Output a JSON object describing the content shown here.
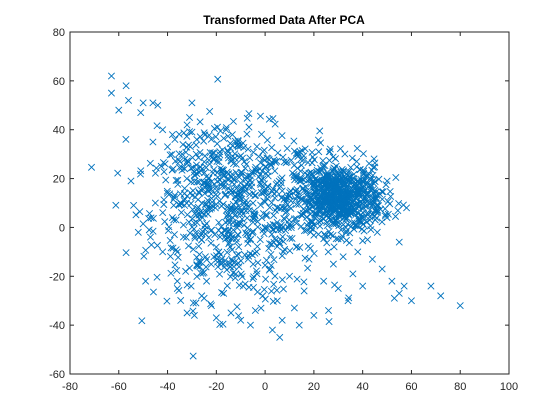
{
  "chart_data": {
    "type": "scatter",
    "title": "Transformed Data After PCA",
    "xlabel": "",
    "ylabel": "",
    "xlim": [
      -80,
      100
    ],
    "ylim": [
      -60,
      80
    ],
    "xticks": [
      -80,
      -60,
      -40,
      -20,
      0,
      20,
      40,
      60,
      80,
      100
    ],
    "yticks": [
      -60,
      -40,
      -20,
      0,
      20,
      40,
      60,
      80
    ],
    "grid": false,
    "marker": "x",
    "color": "#0072BD",
    "series": [
      {
        "points": [
          [
            -63,
            62
          ],
          [
            -63,
            55
          ],
          [
            -60,
            48
          ],
          [
            -57,
            58
          ],
          [
            -56,
            52
          ],
          [
            -55,
            19
          ],
          [
            -51,
            47
          ],
          [
            -50,
            51
          ],
          [
            -49,
            -22
          ],
          [
            -46,
            51
          ],
          [
            -44,
            50
          ],
          [
            -42,
            40
          ],
          [
            -41,
            26
          ],
          [
            -40,
            33
          ],
          [
            -38,
            38
          ],
          [
            -37,
            36
          ],
          [
            -36,
            -25
          ],
          [
            -36,
            -22
          ],
          [
            -35,
            27
          ],
          [
            -34,
            30
          ],
          [
            -33,
            24
          ],
          [
            -33,
            16
          ],
          [
            -33,
            9
          ],
          [
            -32,
            -35
          ],
          [
            -31,
            45
          ],
          [
            -30,
            39
          ],
          [
            -30,
            51
          ],
          [
            -29,
            -36
          ],
          [
            -28,
            36
          ],
          [
            -28,
            22
          ],
          [
            -27,
            -4
          ],
          [
            -27,
            14
          ],
          [
            -26,
            -28
          ],
          [
            -25,
            -29
          ],
          [
            -24,
            -22
          ],
          [
            -23,
            8
          ],
          [
            -22,
            -32
          ],
          [
            -21,
            -12
          ],
          [
            -20,
            -37
          ],
          [
            -20,
            -8
          ],
          [
            -19,
            2
          ],
          [
            -18,
            -15
          ],
          [
            -17,
            -27
          ],
          [
            -16,
            40
          ],
          [
            -15,
            22
          ],
          [
            -14,
            -35
          ],
          [
            -13,
            -1
          ],
          [
            -12,
            -19
          ],
          [
            -11,
            33
          ],
          [
            -10,
            -38
          ],
          [
            -9,
            -24
          ],
          [
            -8,
            15
          ],
          [
            -7,
            -13
          ],
          [
            -6,
            -40
          ],
          [
            -5,
            -21
          ],
          [
            -4,
            -34
          ],
          [
            -3,
            23
          ],
          [
            -2,
            -5
          ],
          [
            -1,
            -28
          ],
          [
            0,
            0
          ],
          [
            2,
            -17
          ],
          [
            3,
            -42
          ],
          [
            4,
            27
          ],
          [
            5,
            -30
          ],
          [
            6,
            -45
          ],
          [
            7,
            -38
          ],
          [
            8,
            -9
          ],
          [
            10,
            -20
          ],
          [
            12,
            -33
          ],
          [
            14,
            -40
          ],
          [
            15,
            5
          ],
          [
            16,
            -26
          ],
          [
            18,
            -13
          ],
          [
            20,
            -36
          ],
          [
            22,
            31
          ],
          [
            24,
            -22
          ],
          [
            26,
            -34
          ],
          [
            28,
            -15
          ],
          [
            30,
            -25
          ],
          [
            32,
            -12
          ],
          [
            34,
            -30
          ],
          [
            36,
            -19
          ],
          [
            38,
            -10
          ],
          [
            40,
            -24
          ],
          [
            42,
            -5
          ],
          [
            44,
            -13
          ],
          [
            46,
            -2
          ],
          [
            48,
            -17
          ],
          [
            50,
            4
          ],
          [
            52,
            -22
          ],
          [
            53,
            -29
          ],
          [
            55,
            -27
          ],
          [
            57,
            -24
          ],
          [
            60,
            -30
          ],
          [
            68,
            -24
          ],
          [
            72,
            -28
          ],
          [
            80,
            -32
          ],
          [
            55,
            -6
          ],
          [
            58,
            8
          ],
          [
            44,
            12
          ],
          [
            -52,
            -2
          ],
          [
            -45,
            10
          ],
          [
            -38,
            4
          ],
          [
            -42,
            -10
          ]
        ]
      }
    ],
    "clusters": [
      {
        "center": [
          -12,
          5
        ],
        "spread": [
          17,
          17
        ],
        "count": 600
      },
      {
        "center": [
          30,
          12
        ],
        "spread": [
          9,
          7
        ],
        "count": 750
      },
      {
        "center": [
          0,
          28
        ],
        "spread": [
          14,
          5
        ],
        "count": 60
      },
      {
        "center": [
          -30,
          22
        ],
        "spread": [
          9,
          11
        ],
        "count": 90
      }
    ]
  }
}
